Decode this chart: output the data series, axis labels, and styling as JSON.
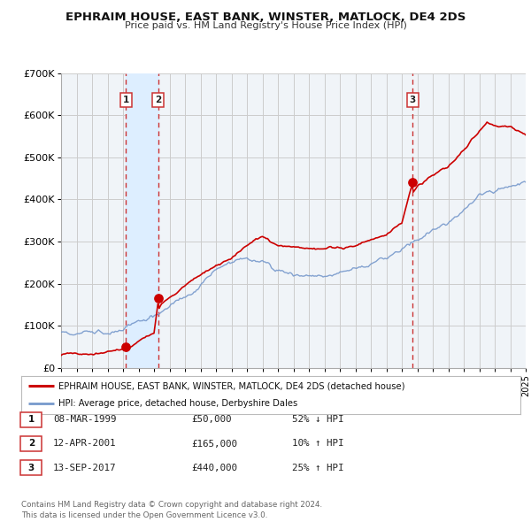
{
  "title": "EPHRAIM HOUSE, EAST BANK, WINSTER, MATLOCK, DE4 2DS",
  "subtitle": "Price paid vs. HM Land Registry's House Price Index (HPI)",
  "xlim": [
    1995,
    2025
  ],
  "ylim": [
    0,
    700000
  ],
  "yticks": [
    0,
    100000,
    200000,
    300000,
    400000,
    500000,
    600000,
    700000
  ],
  "ytick_labels": [
    "£0",
    "£100K",
    "£200K",
    "£300K",
    "£400K",
    "£500K",
    "£600K",
    "£700K"
  ],
  "red_line_color": "#cc0000",
  "blue_line_color": "#7799cc",
  "grid_color": "#cccccc",
  "bg_color": "#ffffff",
  "plot_bg_color": "#f0f4f8",
  "shade_color": "#ddeeff",
  "sale_points": [
    {
      "year": 1999.18,
      "price": 50000,
      "label": "1"
    },
    {
      "year": 2001.27,
      "price": 165000,
      "label": "2"
    },
    {
      "year": 2017.7,
      "price": 440000,
      "label": "3"
    }
  ],
  "vline_years": [
    1999.18,
    2001.27,
    2017.7
  ],
  "shade_region": [
    1999.18,
    2001.27
  ],
  "legend_entries": [
    "EPHRAIM HOUSE, EAST BANK, WINSTER, MATLOCK, DE4 2DS (detached house)",
    "HPI: Average price, detached house, Derbyshire Dales"
  ],
  "table_rows": [
    {
      "num": "1",
      "date": "08-MAR-1999",
      "price": "£50,000",
      "hpi": "52% ↓ HPI"
    },
    {
      "num": "2",
      "date": "12-APR-2001",
      "price": "£165,000",
      "hpi": "10% ↑ HPI"
    },
    {
      "num": "3",
      "date": "13-SEP-2017",
      "price": "£440,000",
      "hpi": "25% ↑ HPI"
    }
  ],
  "footer": "Contains HM Land Registry data © Crown copyright and database right 2024.\nThis data is licensed under the Open Government Licence v3.0."
}
